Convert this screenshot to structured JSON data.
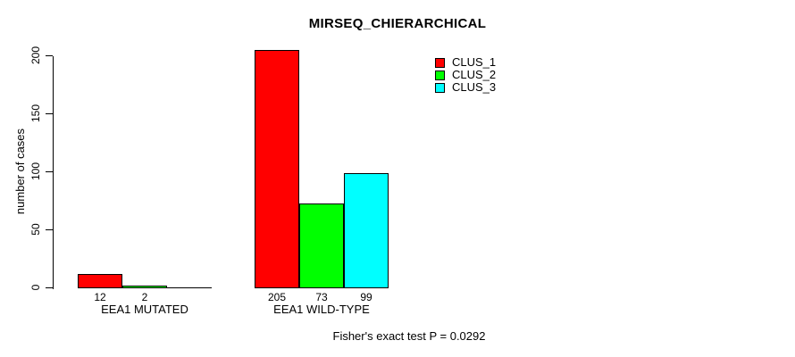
{
  "chart_data": {
    "type": "bar",
    "title": "MIRSEQ_CHIERARCHICAL",
    "ylabel": "number of cases",
    "xlabel": "",
    "ylim": [
      0,
      200
    ],
    "yticks": [
      0,
      50,
      100,
      150,
      200
    ],
    "grid": false,
    "legend_position": "top-right-inside",
    "categories": [
      "EEA1 MUTATED",
      "EEA1 WILD-TYPE"
    ],
    "series": [
      {
        "name": "CLUS_1",
        "color": "#ff0000",
        "values": [
          12,
          205
        ]
      },
      {
        "name": "CLUS_2",
        "color": "#00ff00",
        "values": [
          2,
          73
        ]
      },
      {
        "name": "CLUS_3",
        "color": "#00ffff",
        "values": [
          0,
          99
        ]
      }
    ],
    "bar_labels": [
      [
        "12",
        "2",
        ""
      ],
      [
        "205",
        "73",
        "99"
      ]
    ],
    "annotation": "Fisher's exact test P = 0.0292",
    "colors": {
      "background": "#ffffff",
      "axis": "#000000",
      "text": "#000000"
    }
  }
}
